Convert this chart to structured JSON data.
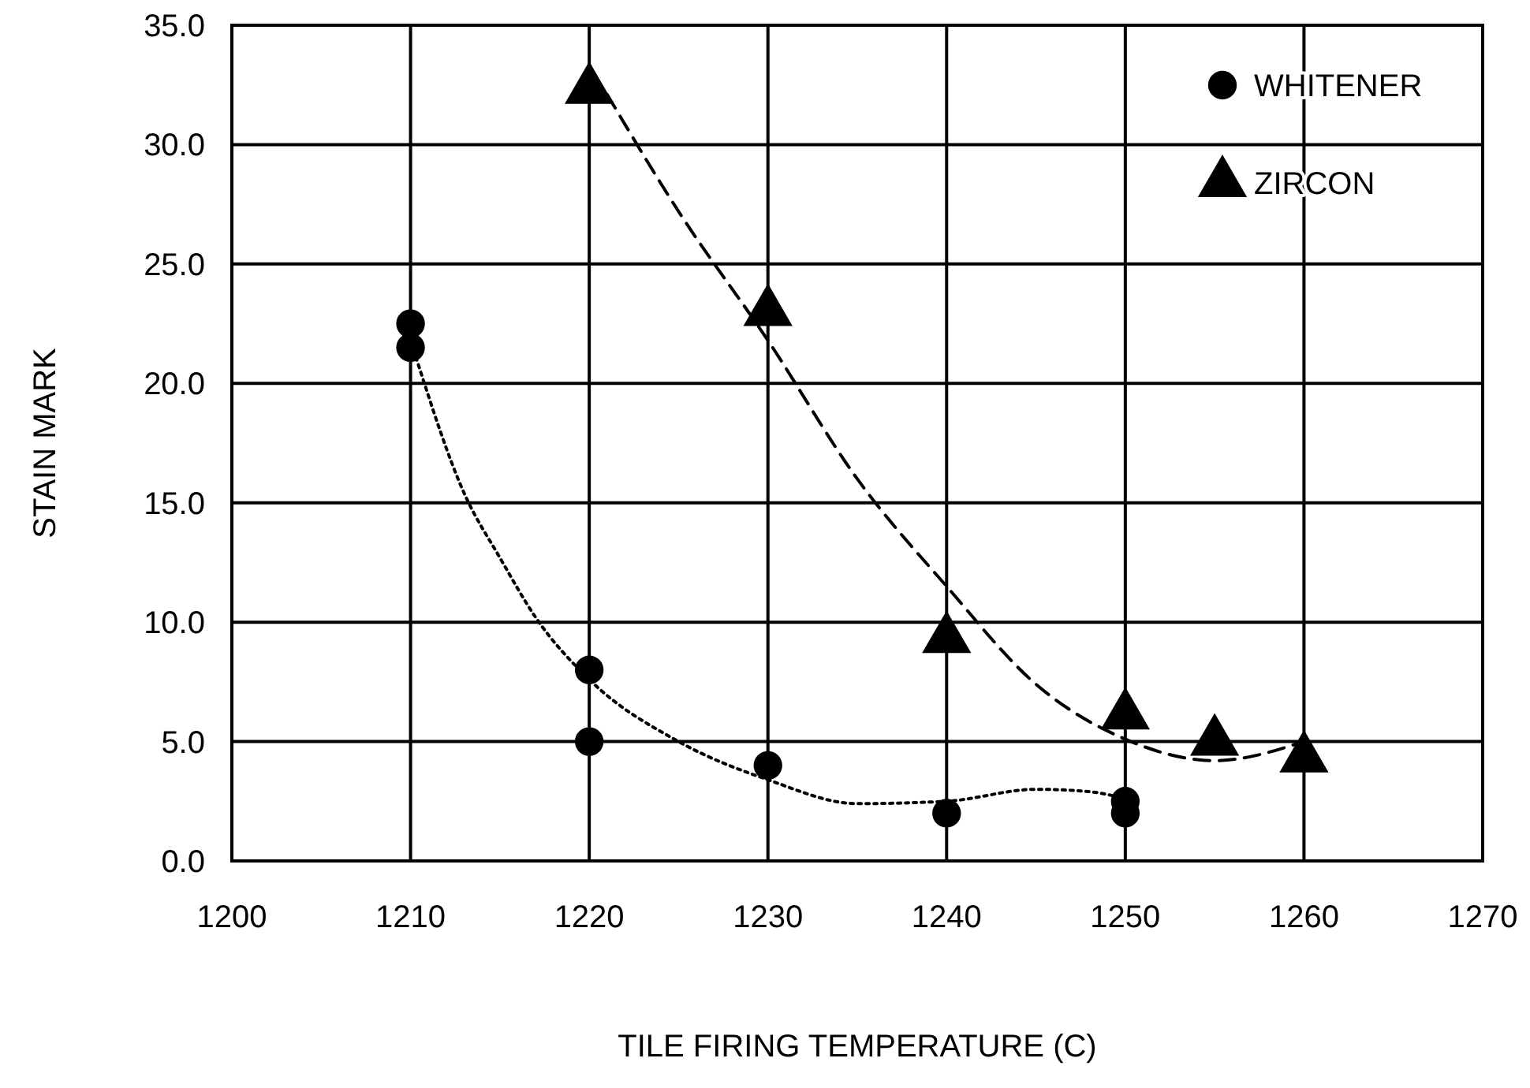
{
  "chart_data": {
    "type": "scatter",
    "xlabel": "TILE FIRING TEMPERATURE (C)",
    "ylabel": "STAIN MARK",
    "xlim": [
      1200,
      1270
    ],
    "xticks": [
      1200,
      1210,
      1220,
      1230,
      1240,
      1250,
      1260,
      1270
    ],
    "ylim": [
      0,
      35
    ],
    "yticks": [
      {
        "value": 0,
        "label": "0.0"
      },
      {
        "value": 5,
        "label": "5.0"
      },
      {
        "value": 10,
        "label": "10.0"
      },
      {
        "value": 15,
        "label": "15.0"
      },
      {
        "value": 20,
        "label": "20.0"
      },
      {
        "value": 25,
        "label": "25.0"
      },
      {
        "value": 30,
        "label": "30.0"
      },
      {
        "value": 35,
        "label": "35.0"
      }
    ],
    "grid": true,
    "legend": "top right",
    "series": [
      {
        "name": "WHITENER",
        "type": "scatter",
        "marker": "circle",
        "color": "#000000",
        "x": [
          1210,
          1210,
          1220,
          1220,
          1230,
          1240,
          1250,
          1250
        ],
        "values": [
          22.5,
          21.5,
          8.0,
          5.0,
          4.0,
          2.0,
          2.5,
          2.0
        ]
      },
      {
        "name": "ZIRCON",
        "type": "scatter",
        "marker": "triangle",
        "color": "#000000",
        "x": [
          1220,
          1230,
          1240,
          1250,
          1255,
          1260
        ],
        "values": [
          32.3,
          23.0,
          9.3,
          6.1,
          5.0,
          4.3
        ]
      },
      {
        "type": "line",
        "line_style": "dotted",
        "marker": "none",
        "color": "#000000",
        "x": [
          1210.3,
          1213,
          1215,
          1217,
          1220,
          1225,
          1230,
          1235,
          1240,
          1245,
          1248,
          1250
        ],
        "values": [
          21.1,
          15.4,
          12.7,
          10.2,
          7.6,
          5.0,
          3.4,
          2.4,
          2.5,
          3.0,
          2.9,
          2.6
        ]
      },
      {
        "type": "line",
        "line_style": "dashed",
        "marker": "none",
        "color": "#000000",
        "x": [
          1221,
          1225,
          1230,
          1235,
          1240,
          1245,
          1250,
          1255,
          1260
        ],
        "values": [
          32.1,
          27.2,
          21.8,
          16.0,
          11.5,
          7.4,
          5.1,
          4.2,
          5.0
        ]
      }
    ]
  }
}
